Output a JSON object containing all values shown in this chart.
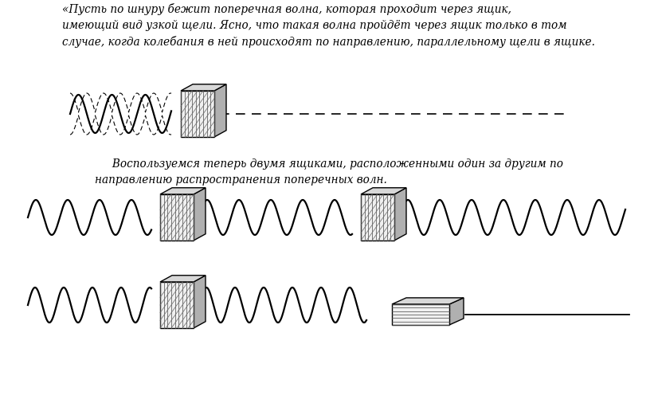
{
  "background_color": "#ffffff",
  "text_color": "#000000",
  "paragraph1": "«Пусть по шнуру бежит поперечная волна, которая проходит через ящик,\nимеющий вид узкой щели. Ясно, что такая волна пройдёт через ящик только в том\nслучае, когда колебания в ней происходят по направлению, параллельному щели в ящике.",
  "paragraph2": "     Воспользуемся теперь двумя ящиками, расположенными один за другим по\nнаправлению распространения поперечных волн.",
  "fig_width": 8.26,
  "fig_height": 5.01,
  "dpi": 100
}
